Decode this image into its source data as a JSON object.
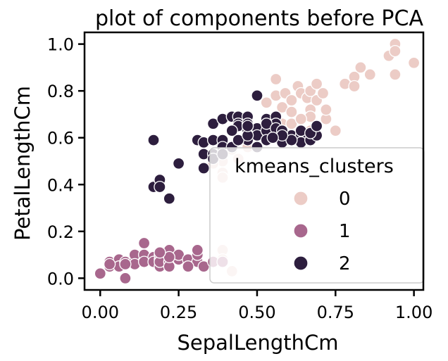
{
  "chart_data": {
    "type": "scatter",
    "title": "plot of components before PCA",
    "xlabel": "SepalLengthCm",
    "ylabel": "PetalLengthCm",
    "xlim": [
      -0.05,
      1.03
    ],
    "ylim": [
      -0.05,
      1.05
    ],
    "grid": false,
    "x_ticks": [
      "0.00",
      "0.25",
      "0.50",
      "0.75",
      "1.00"
    ],
    "y_ticks": [
      "0.0",
      "0.2",
      "0.4",
      "0.6",
      "0.8",
      "1.0"
    ],
    "legend": {
      "title": "kmeans_clusters",
      "placement": "lower-right"
    },
    "series": [
      {
        "name": "0",
        "color": "#ecccc6",
        "points": [
          [
            0.53,
            0.75
          ],
          [
            0.56,
            0.85
          ],
          [
            0.56,
            0.78
          ],
          [
            0.58,
            0.73
          ],
          [
            0.59,
            0.79
          ],
          [
            0.61,
            0.71
          ],
          [
            0.61,
            0.76
          ],
          [
            0.63,
            0.82
          ],
          [
            0.64,
            0.79
          ],
          [
            0.66,
            0.77
          ],
          [
            0.67,
            0.8
          ],
          [
            0.67,
            0.72
          ],
          [
            0.67,
            0.69
          ],
          [
            0.69,
            0.83
          ],
          [
            0.69,
            0.76
          ],
          [
            0.71,
            0.79
          ],
          [
            0.72,
            0.68
          ],
          [
            0.75,
            0.63
          ],
          [
            0.78,
            0.83
          ],
          [
            0.81,
            0.86
          ],
          [
            0.81,
            0.82
          ],
          [
            0.83,
            0.9
          ],
          [
            0.86,
            0.87
          ],
          [
            0.92,
            0.95
          ],
          [
            0.94,
            1.0
          ],
          [
            0.94,
            0.97
          ],
          [
            0.94,
            0.87
          ],
          [
            1.0,
            0.92
          ],
          [
            0.53,
            0.64
          ],
          [
            0.58,
            0.66
          ],
          [
            0.61,
            0.66
          ],
          [
            0.67,
            0.63
          ],
          [
            0.56,
            0.69
          ],
          [
            0.72,
            0.72
          ],
          [
            0.64,
            0.68
          ],
          [
            0.39,
            0.5
          ],
          [
            0.36,
            0.53
          ],
          [
            0.42,
            0.55
          ],
          [
            0.44,
            0.51
          ],
          [
            0.47,
            0.56
          ],
          [
            0.36,
            0.49
          ],
          [
            0.39,
            0.12
          ],
          [
            0.42,
            0.03
          ],
          [
            0.39,
            0.08
          ],
          [
            0.33,
            0.47
          ],
          [
            0.39,
            0.45
          ],
          [
            0.39,
            0.43
          ]
        ]
      },
      {
        "name": "1",
        "color": "#a8678d",
        "points": [
          [
            0.0,
            0.02
          ],
          [
            0.03,
            0.07
          ],
          [
            0.03,
            0.05
          ],
          [
            0.06,
            0.08
          ],
          [
            0.06,
            0.05
          ],
          [
            0.08,
            0.07
          ],
          [
            0.08,
            0.0
          ],
          [
            0.11,
            0.08
          ],
          [
            0.11,
            0.1
          ],
          [
            0.11,
            0.06
          ],
          [
            0.14,
            0.1
          ],
          [
            0.14,
            0.07
          ],
          [
            0.14,
            0.15
          ],
          [
            0.17,
            0.09
          ],
          [
            0.17,
            0.07
          ],
          [
            0.19,
            0.05
          ],
          [
            0.19,
            0.08
          ],
          [
            0.19,
            0.1
          ],
          [
            0.19,
            0.07
          ],
          [
            0.22,
            0.1
          ],
          [
            0.22,
            0.12
          ],
          [
            0.22,
            0.07
          ],
          [
            0.22,
            0.05
          ],
          [
            0.25,
            0.08
          ],
          [
            0.25,
            0.1
          ],
          [
            0.28,
            0.08
          ],
          [
            0.31,
            0.07
          ],
          [
            0.31,
            0.1
          ],
          [
            0.31,
            0.12
          ],
          [
            0.33,
            0.05
          ],
          [
            0.36,
            0.07
          ],
          [
            0.39,
            0.07
          ],
          [
            0.28,
            0.05
          ],
          [
            0.22,
            0.09
          ],
          [
            0.19,
            0.11
          ],
          [
            0.03,
            0.06
          ],
          [
            0.08,
            0.06
          ]
        ]
      },
      {
        "name": "2",
        "color": "#2d1e3e",
        "points": [
          [
            0.17,
            0.59
          ],
          [
            0.17,
            0.39
          ],
          [
            0.19,
            0.42
          ],
          [
            0.19,
            0.39
          ],
          [
            0.22,
            0.34
          ],
          [
            0.25,
            0.49
          ],
          [
            0.31,
            0.59
          ],
          [
            0.33,
            0.58
          ],
          [
            0.33,
            0.53
          ],
          [
            0.33,
            0.47
          ],
          [
            0.36,
            0.66
          ],
          [
            0.36,
            0.59
          ],
          [
            0.36,
            0.53
          ],
          [
            0.39,
            0.68
          ],
          [
            0.39,
            0.59
          ],
          [
            0.39,
            0.56
          ],
          [
            0.42,
            0.69
          ],
          [
            0.42,
            0.56
          ],
          [
            0.44,
            0.69
          ],
          [
            0.44,
            0.66
          ],
          [
            0.44,
            0.65
          ],
          [
            0.47,
            0.69
          ],
          [
            0.47,
            0.66
          ],
          [
            0.47,
            0.63
          ],
          [
            0.47,
            0.59
          ],
          [
            0.5,
            0.78
          ],
          [
            0.5,
            0.64
          ],
          [
            0.5,
            0.61
          ],
          [
            0.53,
            0.68
          ],
          [
            0.53,
            0.63
          ],
          [
            0.53,
            0.59
          ],
          [
            0.56,
            0.69
          ],
          [
            0.56,
            0.66
          ],
          [
            0.56,
            0.61
          ],
          [
            0.58,
            0.58
          ],
          [
            0.61,
            0.61
          ],
          [
            0.64,
            0.61
          ],
          [
            0.64,
            0.58
          ],
          [
            0.67,
            0.59
          ],
          [
            0.69,
            0.61
          ],
          [
            0.36,
            0.51
          ],
          [
            0.39,
            0.53
          ],
          [
            0.42,
            0.63
          ],
          [
            0.44,
            0.59
          ],
          [
            0.47,
            0.61
          ],
          [
            0.5,
            0.56
          ],
          [
            0.53,
            0.66
          ],
          [
            0.56,
            0.64
          ],
          [
            0.58,
            0.63
          ],
          [
            0.61,
            0.59
          ],
          [
            0.64,
            0.63
          ],
          [
            0.67,
            0.62
          ],
          [
            0.69,
            0.65
          ],
          [
            0.58,
            0.61
          ],
          [
            0.55,
            0.6
          ],
          [
            0.47,
            0.65
          ]
        ]
      }
    ]
  }
}
